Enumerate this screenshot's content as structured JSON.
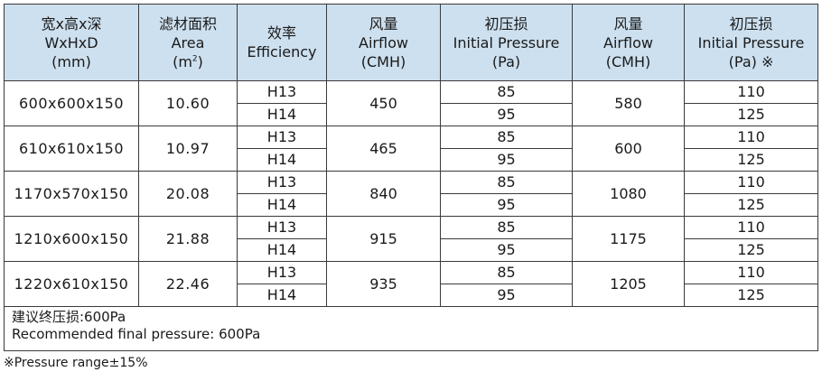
{
  "headers": [
    {
      "cn": "宽x高x深",
      "en": "WxHxD",
      "unit": "(mm)"
    },
    {
      "cn": "滤材面积",
      "en": "Area",
      "unit_pre": "(m",
      "unit_sup": "2",
      "unit_post": ")"
    },
    {
      "cn": "效率",
      "en": "Efficiency"
    },
    {
      "cn": "风量",
      "en": "Airflow",
      "unit": "(CMH)"
    },
    {
      "cn": "初压损",
      "en": "Initial Pressure",
      "unit": "(Pa)"
    },
    {
      "cn": "风量",
      "en": "Airflow",
      "unit": "(CMH)"
    },
    {
      "cn": "初压损",
      "en": "Initial Pressure",
      "unit": "(Pa) ※"
    }
  ],
  "rows": [
    {
      "size": "600x600x150",
      "area": "10.60",
      "eff": [
        "H13",
        "H14"
      ],
      "airflow1": "450",
      "pressure1": [
        "85",
        "95"
      ],
      "airflow2": "580",
      "pressure2": [
        "110",
        "125"
      ]
    },
    {
      "size": "610x610x150",
      "area": "10.97",
      "eff": [
        "H13",
        "H14"
      ],
      "airflow1": "465",
      "pressure1": [
        "85",
        "95"
      ],
      "airflow2": "600",
      "pressure2": [
        "110",
        "125"
      ]
    },
    {
      "size": "1170x570x150",
      "area": "20.08",
      "eff": [
        "H13",
        "H14"
      ],
      "airflow1": "840",
      "pressure1": [
        "85",
        "95"
      ],
      "airflow2": "1080",
      "pressure2": [
        "110",
        "125"
      ]
    },
    {
      "size": "1210x600x150",
      "area": "21.88",
      "eff": [
        "H13",
        "H14"
      ],
      "airflow1": "915",
      "pressure1": [
        "85",
        "95"
      ],
      "airflow2": "1175",
      "pressure2": [
        "110",
        "125"
      ]
    },
    {
      "size": "1220x610x150",
      "area": "22.46",
      "eff": [
        "H13",
        "H14"
      ],
      "airflow1": "935",
      "pressure1": [
        "85",
        "95"
      ],
      "airflow2": "1205",
      "pressure2": [
        "110",
        "125"
      ]
    }
  ],
  "notes": {
    "final_pressure_cn": "建议终压损:600Pa",
    "final_pressure_en": "Recommended final pressure: 600Pa",
    "pressure_range": "※Pressure  range±15%"
  },
  "colors": {
    "header_bg": "#cde0ef",
    "border": "#3a3a3a"
  }
}
